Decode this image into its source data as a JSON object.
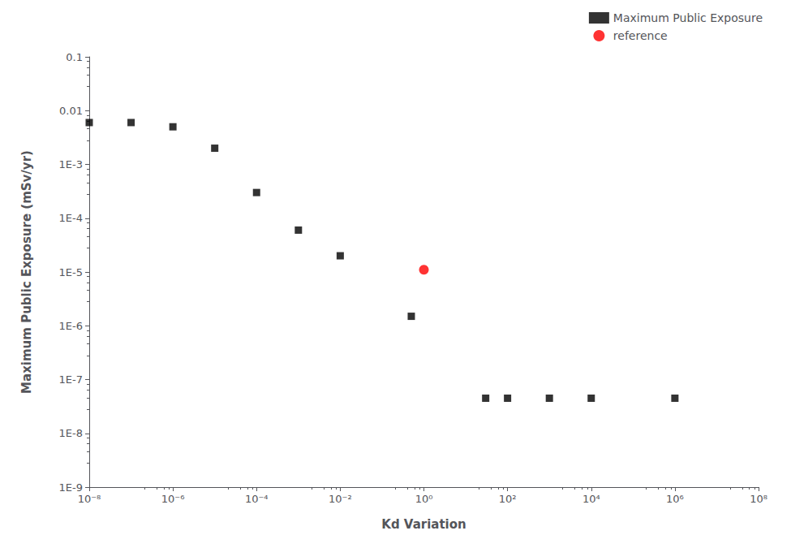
{
  "chart_data": {
    "type": "scatter",
    "xlabel": "Kd Variation",
    "ylabel": "Maximum Public Exposure (mSv/yr)",
    "log": true,
    "grid": false,
    "legend": "upper right",
    "xlim": [
      1e-08,
      100000000.0
    ],
    "ylim": [
      1e-09,
      0.1
    ],
    "xticks": [
      {
        "value": 1e-08,
        "label": "10⁻⁸"
      },
      {
        "value": 1e-06,
        "label": "10⁻⁶"
      },
      {
        "value": 0.0001,
        "label": "10⁻⁴"
      },
      {
        "value": 0.01,
        "label": "10⁻²"
      },
      {
        "value": 1,
        "label": "10⁰"
      },
      {
        "value": 100.0,
        "label": "10²"
      },
      {
        "value": 10000.0,
        "label": "10⁴"
      },
      {
        "value": 1000000.0,
        "label": "10⁶"
      },
      {
        "value": 100000000.0,
        "label": "10⁸"
      }
    ],
    "yticks": [
      {
        "value": 1e-09,
        "label": "1E-9"
      },
      {
        "value": 1e-08,
        "label": "1E-8"
      },
      {
        "value": 1e-07,
        "label": "1E-7"
      },
      {
        "value": 1e-06,
        "label": "1E-6"
      },
      {
        "value": 1e-05,
        "label": "1E-5"
      },
      {
        "value": 0.0001,
        "label": "1E-4"
      },
      {
        "value": 0.001,
        "label": "1E-3"
      },
      0.01,
      0.1
    ],
    "series": [
      {
        "name": "Maximum Public Exposure",
        "color": "#000000",
        "marker": "square",
        "x": [
          1e-08,
          1e-07,
          1e-06,
          1e-05,
          0.0001,
          0.001,
          0.01,
          0.5,
          30.0,
          100.0,
          1000.0,
          10000.0,
          1000000.0
        ],
        "values": [
          0.006,
          0.006,
          0.005,
          0.002,
          0.0003,
          6e-05,
          2e-05,
          1.5e-06,
          4.5e-08,
          4.5e-08,
          4.5e-08,
          4.5e-08,
          4.5e-08
        ]
      },
      {
        "name": "reference",
        "color": "#ff0000",
        "marker": "circle",
        "x": [
          1.0
        ],
        "values": [
          1.1e-05
        ]
      }
    ]
  }
}
